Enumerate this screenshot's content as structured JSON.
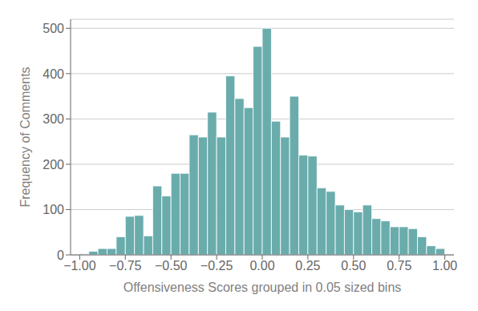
{
  "chart_data": {
    "type": "histogram",
    "xlabel": "Offensiveness Scores grouped in 0.05 sized bins",
    "ylabel": "Frequency of Comments",
    "bins": [
      -1,
      -0.95,
      -0.9,
      -0.85,
      -0.8,
      -0.75,
      -0.7,
      -0.65,
      -0.6,
      -0.55,
      -0.5,
      -0.45,
      -0.4,
      -0.35,
      -0.3,
      -0.25,
      -0.2,
      -0.15,
      -0.1,
      -0.05,
      0,
      0.05,
      0.1,
      0.15,
      0.2,
      0.25,
      0.3,
      0.35,
      0.4,
      0.45,
      0.5,
      0.55,
      0.6,
      0.65,
      0.7,
      0.75,
      0.8,
      0.85,
      0.9,
      0.95,
      1
    ],
    "values": [
      2,
      8,
      14,
      14,
      40,
      85,
      87,
      42,
      152,
      130,
      180,
      180,
      265,
      260,
      315,
      260,
      395,
      345,
      325,
      460,
      500,
      295,
      260,
      350,
      220,
      218,
      148,
      140,
      110,
      100,
      95,
      110,
      80,
      75,
      62,
      62,
      58,
      40,
      20,
      14
    ],
    "color": "#6aacac",
    "xlim": [
      -1.05,
      1.05
    ],
    "ylim": [
      0,
      520
    ],
    "xticks": [
      {
        "value": -1.0,
        "label": "−1.00"
      },
      {
        "value": -0.75,
        "label": "−0.75"
      },
      {
        "value": -0.5,
        "label": "−0.50"
      },
      {
        "value": -0.25,
        "label": "−0.25"
      },
      {
        "value": 0.0,
        "label": "0.00"
      },
      {
        "value": 0.25,
        "label": "0.25"
      },
      {
        "value": 0.5,
        "label": "0.50"
      },
      {
        "value": 0.75,
        "label": "0.75"
      },
      {
        "value": 1.0,
        "label": "1.00"
      }
    ],
    "yticks": [
      0,
      100,
      200,
      300,
      400,
      500
    ],
    "grid": true
  }
}
